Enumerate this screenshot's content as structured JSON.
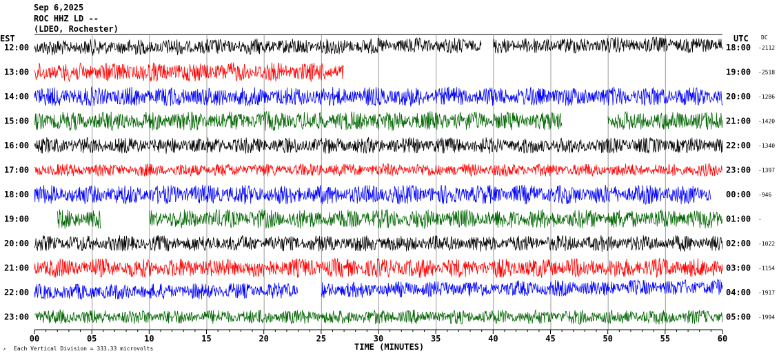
{
  "header": {
    "date": "Sep 6,2025",
    "station": "ROC HHZ LD --",
    "network": "(LDEO, Rochester)"
  },
  "labels": {
    "left_zone": "EST",
    "right_zone": "UTC",
    "dc": "DC",
    "xlabel": "TIME (MINUTES)",
    "footnote": "Each Vertical Division =  333.33 microvolts"
  },
  "chart_data": {
    "type": "line",
    "title": "",
    "xlabel": "TIME (MINUTES)",
    "x_range": [
      0,
      60
    ],
    "x_ticks": [
      "00",
      "05",
      "10",
      "15",
      "20",
      "25",
      "30",
      "35",
      "40",
      "45",
      "50",
      "55",
      "60"
    ],
    "series_colors": [
      "#000000",
      "#ff0000",
      "#0000ff",
      "#006400"
    ],
    "rows": [
      {
        "est": "12:00",
        "utc": "18:00",
        "dc": "-2112",
        "color": "#000000",
        "amp": 10,
        "gaps": [
          [
            39.0,
            40.0
          ]
        ],
        "drift": -4
      },
      {
        "est": "13:00",
        "utc": "19:00",
        "dc": "-2518",
        "color": "#ff0000",
        "amp": 12,
        "gaps": [
          [
            27.0,
            60.0
          ]
        ],
        "drift": 0
      },
      {
        "est": "14:00",
        "utc": "20:00",
        "dc": "-1286",
        "color": "#0000ff",
        "amp": 12,
        "gaps": [],
        "drift": 0
      },
      {
        "est": "15:00",
        "utc": "21:00",
        "dc": "-1420",
        "color": "#006400",
        "amp": 12,
        "gaps": [
          [
            46.0,
            50.0
          ]
        ],
        "drift": 0
      },
      {
        "est": "16:00",
        "utc": "22:00",
        "dc": "-1340",
        "color": "#000000",
        "amp": 10,
        "gaps": [],
        "drift": 0
      },
      {
        "est": "17:00",
        "utc": "23:00",
        "dc": "-1397",
        "color": "#ff0000",
        "amp": 8,
        "gaps": [],
        "drift": 0
      },
      {
        "est": "18:00",
        "utc": "00:00",
        "dc": "-946",
        "color": "#0000ff",
        "amp": 12,
        "gaps": [
          [
            59.0,
            60.0
          ]
        ],
        "drift": 0
      },
      {
        "est": "19:00",
        "utc": "01:00",
        "dc": "-",
        "color": "#006400",
        "amp": 12,
        "gaps": [
          [
            0.0,
            2.0
          ],
          [
            5.8,
            10.0
          ]
        ],
        "drift": 0
      },
      {
        "est": "20:00",
        "utc": "02:00",
        "dc": "-1022",
        "color": "#000000",
        "amp": 10,
        "gaps": [],
        "drift": 0
      },
      {
        "est": "21:00",
        "utc": "03:00",
        "dc": "-1154",
        "color": "#ff0000",
        "amp": 12,
        "gaps": [],
        "drift": 0
      },
      {
        "est": "22:00",
        "utc": "04:00",
        "dc": "-1917",
        "color": "#0000ff",
        "amp": 10,
        "gaps": [
          [
            23.0,
            25.0
          ]
        ],
        "drift": -8
      },
      {
        "est": "23:00",
        "utc": "05:00",
        "dc": "-1994",
        "color": "#006400",
        "amp": 9,
        "gaps": [],
        "drift": 0
      }
    ]
  }
}
